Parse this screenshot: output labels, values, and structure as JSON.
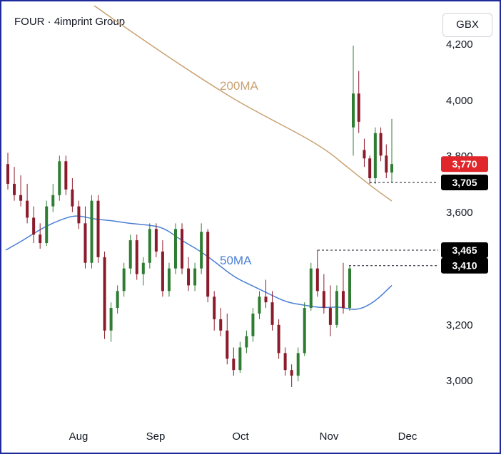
{
  "header": {
    "title": "FOUR · 4imprint Group",
    "currency": "GBX"
  },
  "chart_data": {
    "type": "candlestick",
    "ylim": [
      2950,
      4250
    ],
    "y_ticks": [
      "4,200",
      "4,000",
      "3,800",
      "3,600",
      "3,200",
      "3,000"
    ],
    "x_ticks": [
      "Aug",
      "Sep",
      "Oct",
      "Nov",
      "Dec"
    ],
    "grid": false,
    "colors": {
      "up": "#2e7d32",
      "down": "#8b1a2a",
      "ma200": "#c8a273",
      "ma50": "#4a7fd4",
      "current_tag": "#e0252b",
      "level_tag": "#000000"
    },
    "series": [
      {
        "name": "200MA",
        "start": 4400,
        "end": 3640
      },
      {
        "name": "50MA",
        "points": [
          3465,
          3500,
          3540,
          3570,
          3590,
          3575,
          3570,
          3560,
          3555,
          3545,
          3500,
          3465,
          3420,
          3370,
          3340,
          3310,
          3280,
          3270,
          3260,
          3265,
          3250,
          3280,
          3340
        ]
      }
    ],
    "candles_ohlc": [
      [
        3770,
        3810,
        3680,
        3700
      ],
      [
        3700,
        3760,
        3640,
        3660
      ],
      [
        3660,
        3730,
        3620,
        3640
      ],
      [
        3640,
        3700,
        3560,
        3580
      ],
      [
        3580,
        3620,
        3490,
        3520
      ],
      [
        3520,
        3560,
        3470,
        3490
      ],
      [
        3490,
        3640,
        3480,
        3620
      ],
      [
        3620,
        3700,
        3600,
        3660
      ],
      [
        3660,
        3800,
        3640,
        3780
      ],
      [
        3780,
        3800,
        3660,
        3680
      ],
      [
        3680,
        3720,
        3600,
        3620
      ],
      [
        3620,
        3640,
        3540,
        3560
      ],
      [
        3560,
        3620,
        3400,
        3420
      ],
      [
        3420,
        3660,
        3400,
        3640
      ],
      [
        3640,
        3660,
        3420,
        3440
      ],
      [
        3440,
        3460,
        3150,
        3180
      ],
      [
        3180,
        3280,
        3140,
        3260
      ],
      [
        3260,
        3340,
        3240,
        3320
      ],
      [
        3320,
        3420,
        3300,
        3400
      ],
      [
        3400,
        3520,
        3380,
        3500
      ],
      [
        3500,
        3520,
        3360,
        3380
      ],
      [
        3380,
        3440,
        3340,
        3420
      ],
      [
        3420,
        3560,
        3400,
        3540
      ],
      [
        3540,
        3560,
        3440,
        3460
      ],
      [
        3460,
        3500,
        3300,
        3320
      ],
      [
        3320,
        3420,
        3300,
        3400
      ],
      [
        3400,
        3560,
        3380,
        3540
      ],
      [
        3540,
        3560,
        3380,
        3400
      ],
      [
        3400,
        3440,
        3320,
        3340
      ],
      [
        3340,
        3420,
        3320,
        3400
      ],
      [
        3400,
        3560,
        3380,
        3530
      ],
      [
        3530,
        3540,
        3280,
        3300
      ],
      [
        3300,
        3320,
        3180,
        3220
      ],
      [
        3220,
        3260,
        3160,
        3180
      ],
      [
        3180,
        3240,
        3060,
        3080
      ],
      [
        3080,
        3120,
        3020,
        3040
      ],
      [
        3040,
        3140,
        3030,
        3120
      ],
      [
        3120,
        3180,
        3100,
        3160
      ],
      [
        3160,
        3260,
        3140,
        3240
      ],
      [
        3240,
        3320,
        3220,
        3300
      ],
      [
        3300,
        3360,
        3260,
        3280
      ],
      [
        3280,
        3320,
        3180,
        3200
      ],
      [
        3200,
        3220,
        3080,
        3100
      ],
      [
        3100,
        3120,
        3020,
        3040
      ],
      [
        3040,
        3060,
        2980,
        3020
      ],
      [
        3020,
        3120,
        3000,
        3100
      ],
      [
        3100,
        3280,
        3090,
        3260
      ],
      [
        3260,
        3420,
        3250,
        3400
      ],
      [
        3400,
        3465,
        3300,
        3320
      ],
      [
        3320,
        3380,
        3240,
        3260
      ],
      [
        3260,
        3340,
        3160,
        3200
      ],
      [
        3200,
        3340,
        3190,
        3320
      ],
      [
        3320,
        3420,
        3240,
        3260
      ],
      [
        3260,
        3410,
        3250,
        3400
      ],
      [
        3900,
        4190,
        3800,
        4020
      ],
      [
        4020,
        4100,
        3880,
        3920
      ],
      [
        3820,
        3860,
        3760,
        3790
      ],
      [
        3790,
        3800,
        3700,
        3720
      ],
      [
        3720,
        3900,
        3700,
        3880
      ],
      [
        3880,
        3900,
        3780,
        3800
      ],
      [
        3800,
        3840,
        3720,
        3740
      ],
      [
        3740,
        3930,
        3705,
        3770
      ]
    ],
    "price_tags": [
      {
        "value": 3770,
        "label": "3,770",
        "kind": "current"
      },
      {
        "value": 3705,
        "label": "3,705",
        "kind": "level"
      },
      {
        "value": 3465,
        "label": "3,465",
        "kind": "level"
      },
      {
        "value": 3410,
        "label": "3,410",
        "kind": "level"
      }
    ]
  }
}
